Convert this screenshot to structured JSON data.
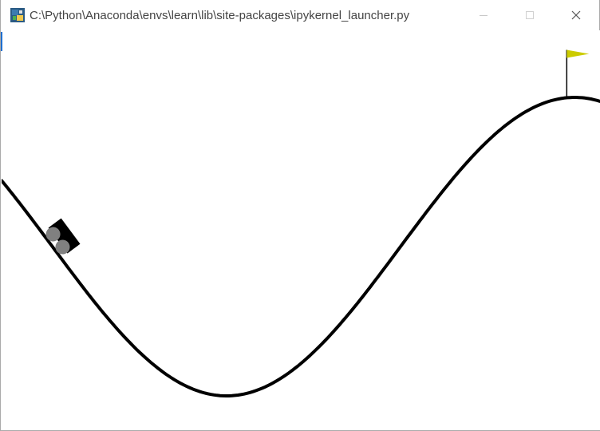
{
  "window": {
    "title": "C:\\Python\\Anaconda\\envs\\learn\\lib\\site-packages\\ipykernel_launcher.py",
    "icon": "python-app-icon",
    "controls": {
      "minimize": "minimize-icon",
      "maximize": "maximize-icon",
      "close": "close-icon"
    }
  },
  "scene": {
    "environment": "MountainCar",
    "track": {
      "curve": "sin(3x)",
      "x_min": -1.2,
      "x_max": 0.6,
      "color": "#000000"
    },
    "goal": {
      "position": 0.5,
      "flag_color": "#cccc00",
      "pole_color": "#000000"
    },
    "car": {
      "position": -1.05,
      "body_color": "#000000",
      "wheel_color": "#808080"
    },
    "background_color": "#ffffff"
  }
}
